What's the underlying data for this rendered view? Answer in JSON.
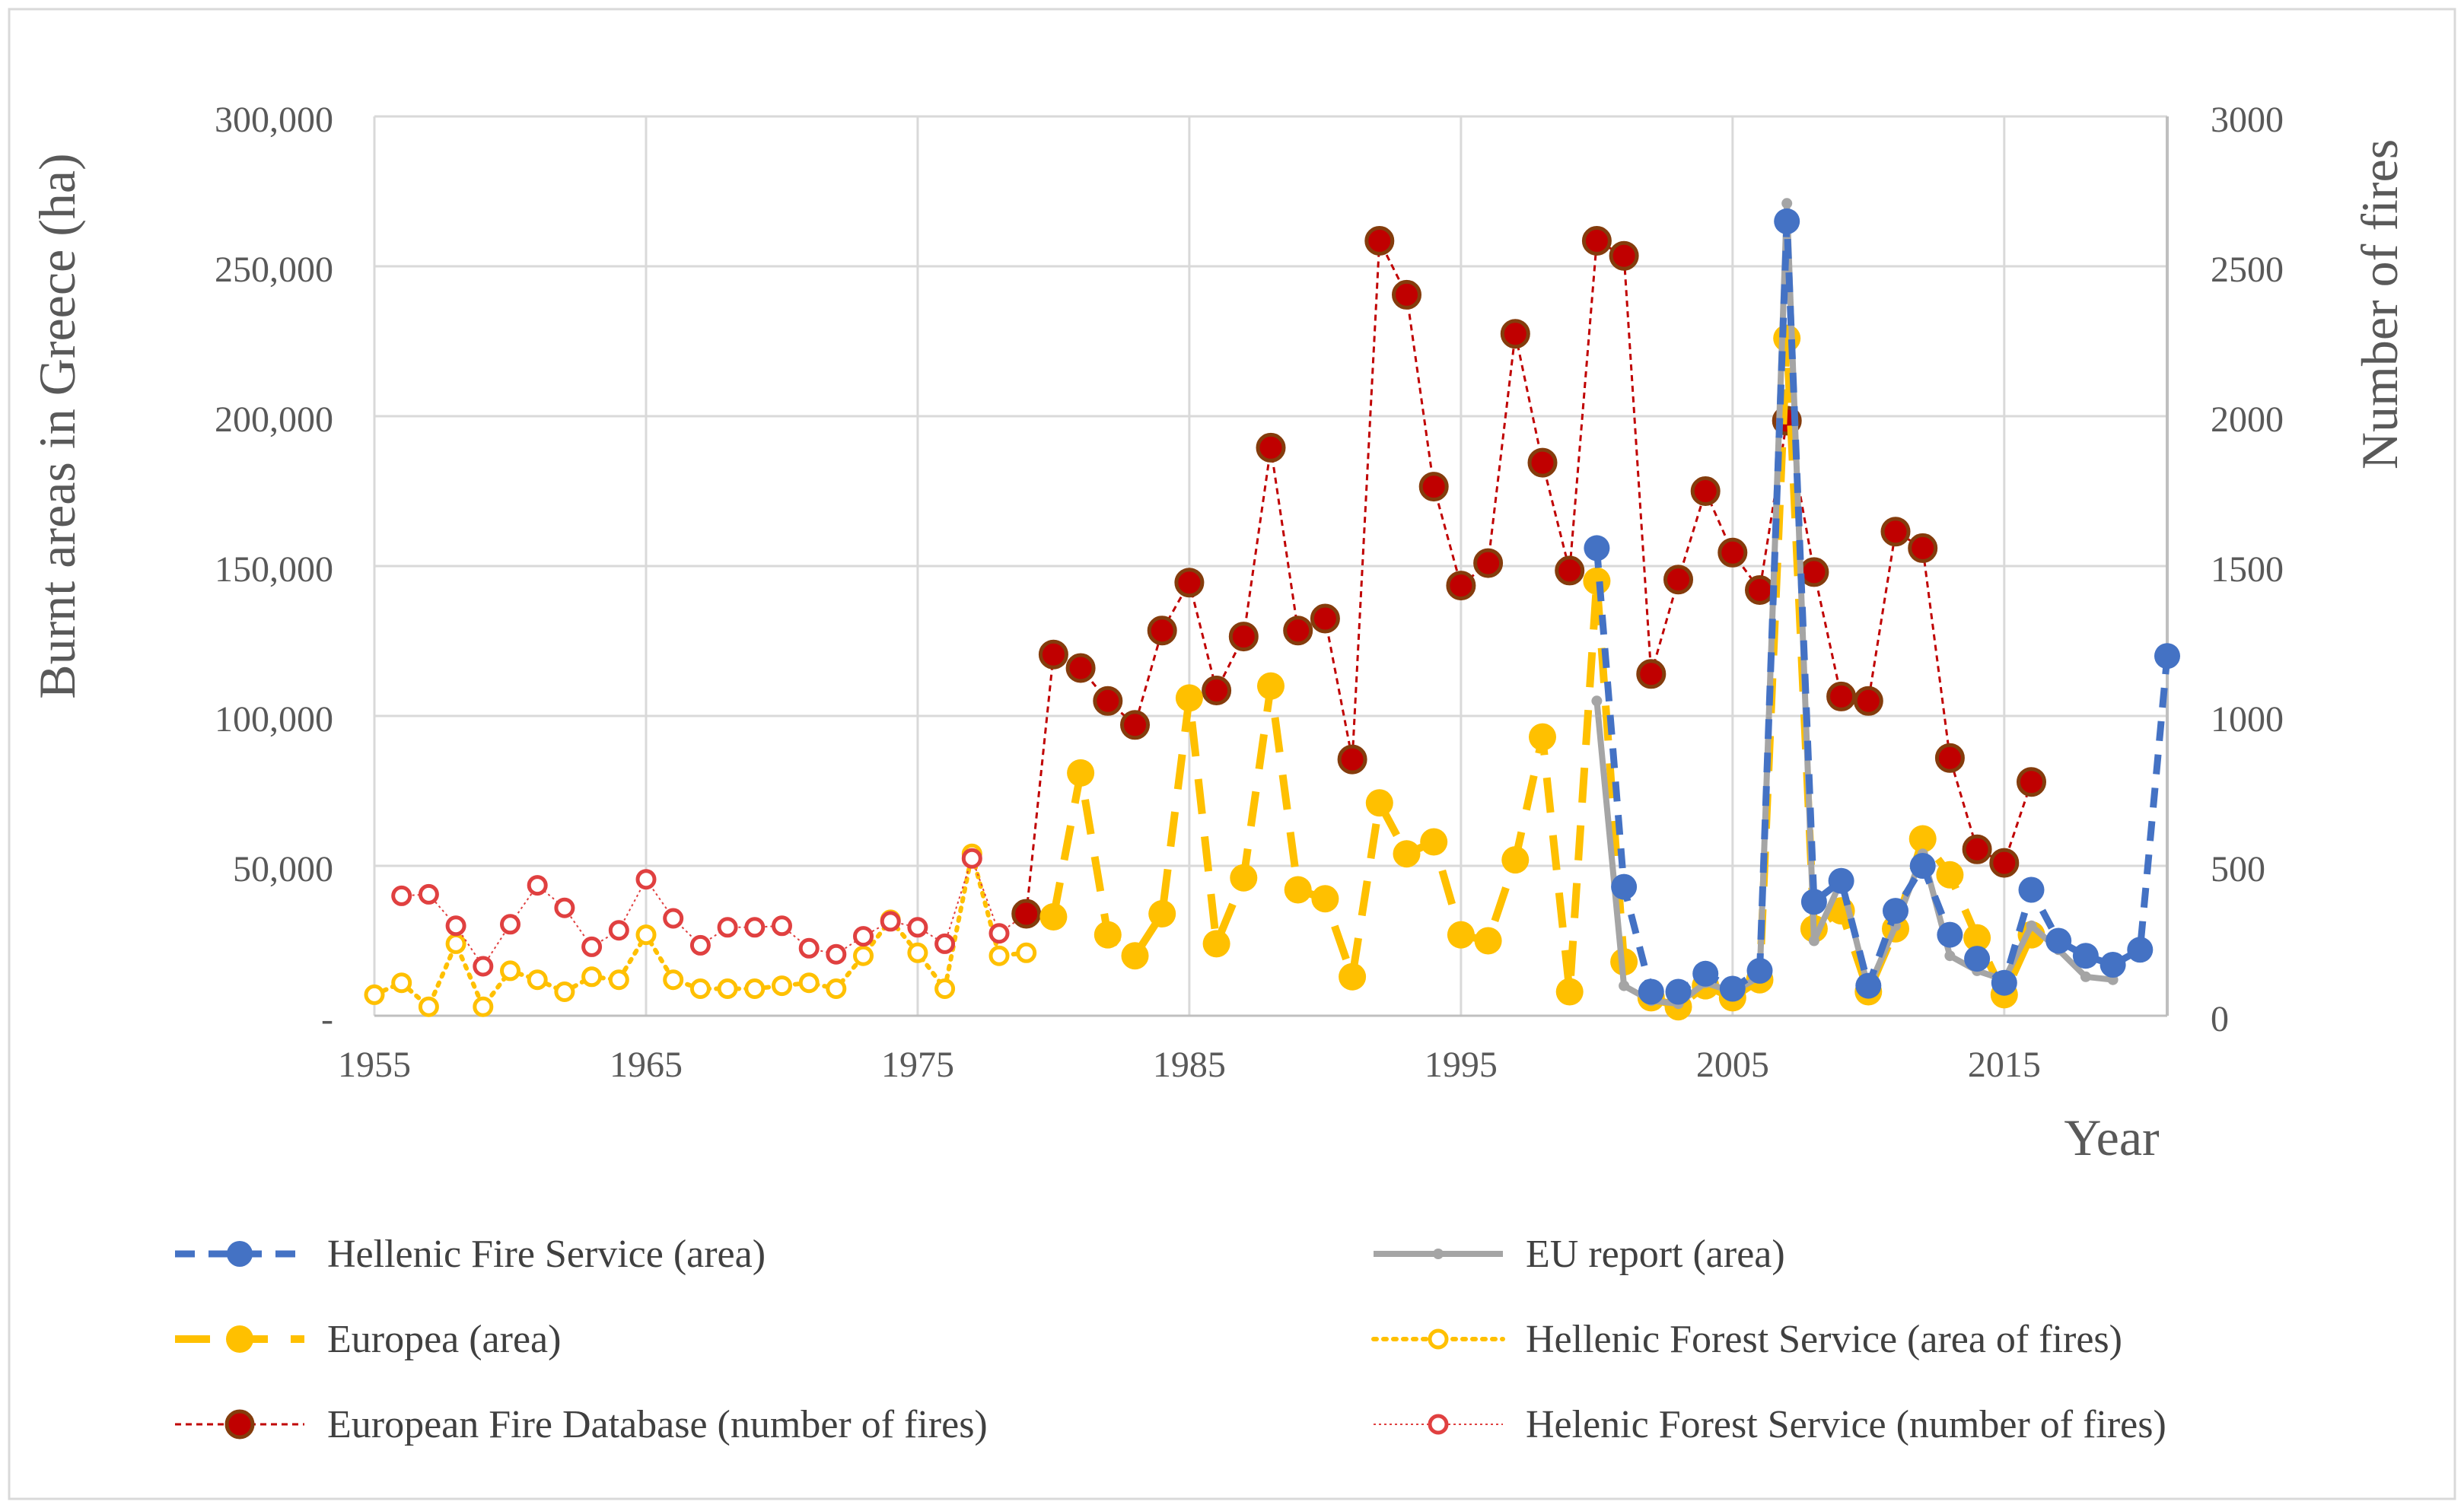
{
  "chart_data": {
    "type": "line",
    "xlabel": "Year",
    "ylabel": "Burnt areas in Greece (ha)",
    "y2label": "Number of fires",
    "xlim": [
      1955,
      2021
    ],
    "ylim": [
      0,
      300000
    ],
    "y2lim": [
      0,
      3000
    ],
    "grid": true,
    "legend_placement": "bottom",
    "x_ticks": [
      1955,
      1965,
      1975,
      1985,
      1995,
      2005,
      2015
    ],
    "x_tick_labels": [
      "1955",
      "1965",
      "1975",
      "1985",
      "1995",
      "2005",
      "2015"
    ],
    "y_ticks": [
      0,
      50000,
      100000,
      150000,
      200000,
      250000,
      300000
    ],
    "y_tick_labels": [
      "-",
      "50,000",
      "100,000",
      "150,000",
      "200,000",
      "250,000",
      "300,000"
    ],
    "y2_ticks": [
      0,
      500,
      1000,
      1500,
      2000,
      2500,
      3000
    ],
    "y2_tick_labels": [
      "0",
      "500",
      "1000",
      "1500",
      "2000",
      "2500",
      "3000"
    ],
    "series": [
      {
        "name": "Hellenic Fire Service (area)",
        "axis": "left",
        "color": "#4472C4",
        "style": "dash-solid-marker",
        "x": [
          2000,
          2001,
          2002,
          2003,
          2004,
          2005,
          2006,
          2007,
          2008,
          2009,
          2010,
          2011,
          2012,
          2013,
          2014,
          2015,
          2016,
          2017,
          2018,
          2019,
          2020,
          2021
        ],
        "y": [
          156000,
          43000,
          8000,
          8000,
          14000,
          9000,
          15000,
          265000,
          38000,
          45000,
          10000,
          35000,
          50000,
          27000,
          19000,
          11000,
          42000,
          25000,
          20000,
          17000,
          22000,
          120000
        ]
      },
      {
        "name": "EU report (area)",
        "axis": "left",
        "color": "#A5A5A5",
        "style": "solid-small-marker",
        "x": [
          2000,
          2001,
          2002,
          2003,
          2004,
          2005,
          2006,
          2007,
          2008,
          2009,
          2010,
          2011,
          2012,
          2013,
          2014,
          2015,
          2016,
          2017,
          2018,
          2019
        ],
        "y": [
          105000,
          10000,
          5000,
          4000,
          11000,
          8000,
          13000,
          271000,
          25000,
          45000,
          9000,
          30000,
          54000,
          20000,
          15000,
          12000,
          30000,
          22000,
          13000,
          12000
        ]
      },
      {
        "name": "Europea (area)",
        "axis": "left",
        "color": "#FFC000",
        "style": "long-dash-solid-marker",
        "x": [
          1980,
          1981,
          1982,
          1983,
          1984,
          1985,
          1986,
          1987,
          1988,
          1989,
          1990,
          1991,
          1992,
          1993,
          1994,
          1995,
          1996,
          1997,
          1998,
          1999,
          2000,
          2001,
          2002,
          2003,
          2004,
          2005,
          2006,
          2007,
          2008,
          2009,
          2010,
          2011,
          2012,
          2013,
          2014,
          2015,
          2016
        ],
        "y": [
          33000,
          81000,
          27000,
          20000,
          34000,
          106000,
          24000,
          46000,
          110000,
          42000,
          39000,
          13000,
          71000,
          54000,
          58000,
          27000,
          25000,
          52000,
          93000,
          8000,
          145000,
          18000,
          6000,
          3000,
          10000,
          6000,
          12000,
          226000,
          29000,
          35000,
          8000,
          29000,
          59000,
          47000,
          26000,
          7000,
          27000
        ]
      },
      {
        "name": "Hellenic Forest Service (area of fires)",
        "axis": "left",
        "color": "#FFC000",
        "style": "dotted-open-marker",
        "x": [
          1955,
          1956,
          1957,
          1958,
          1959,
          1960,
          1961,
          1962,
          1963,
          1964,
          1965,
          1966,
          1967,
          1968,
          1969,
          1970,
          1971,
          1972,
          1973,
          1974,
          1975,
          1976,
          1977,
          1978,
          1979
        ],
        "y": [
          7000,
          11000,
          3000,
          24000,
          3000,
          15000,
          12000,
          8000,
          13000,
          12000,
          27000,
          12000,
          9000,
          9000,
          9000,
          10000,
          11000,
          9000,
          20000,
          32000,
          21000,
          9000,
          54000,
          20000,
          21000
        ]
      },
      {
        "name": "European Fire Database (number of fires)",
        "axis": "right",
        "color": "#C00000",
        "style": "short-dash-solid-marker",
        "x": [
          1979,
          1980,
          1981,
          1982,
          1983,
          1984,
          1985,
          1986,
          1987,
          1988,
          1989,
          1990,
          1991,
          1992,
          1993,
          1994,
          1995,
          1996,
          1997,
          1998,
          1999,
          2000,
          2001,
          2002,
          2003,
          2004,
          2005,
          2006,
          2007,
          2008,
          2009,
          2010,
          2011,
          2012,
          2013,
          2014,
          2015,
          2016
        ],
        "y": [
          340,
          1205,
          1160,
          1050,
          970,
          1285,
          1445,
          1085,
          1265,
          1895,
          1285,
          1325,
          855,
          2585,
          2405,
          1765,
          1435,
          1510,
          2275,
          1845,
          1485,
          2585,
          2535,
          1140,
          1455,
          1750,
          1545,
          1420,
          1985,
          1480,
          1065,
          1050,
          1615,
          1560,
          860,
          555,
          510,
          780
        ]
      },
      {
        "name": "Helenic Forest Service (number of fires)",
        "axis": "right",
        "color": "#E04040",
        "style": "fine-dotted-open-marker",
        "x": [
          1956,
          1957,
          1958,
          1959,
          1960,
          1961,
          1962,
          1963,
          1964,
          1965,
          1966,
          1967,
          1968,
          1969,
          1970,
          1971,
          1972,
          1973,
          1974,
          1975,
          1976,
          1977,
          1978,
          1979
        ],
        "y": [
          400,
          405,
          300,
          165,
          305,
          435,
          360,
          230,
          285,
          455,
          325,
          235,
          295,
          295,
          300,
          225,
          205,
          265,
          315,
          295,
          240,
          525,
          275,
          340
        ]
      }
    ]
  }
}
